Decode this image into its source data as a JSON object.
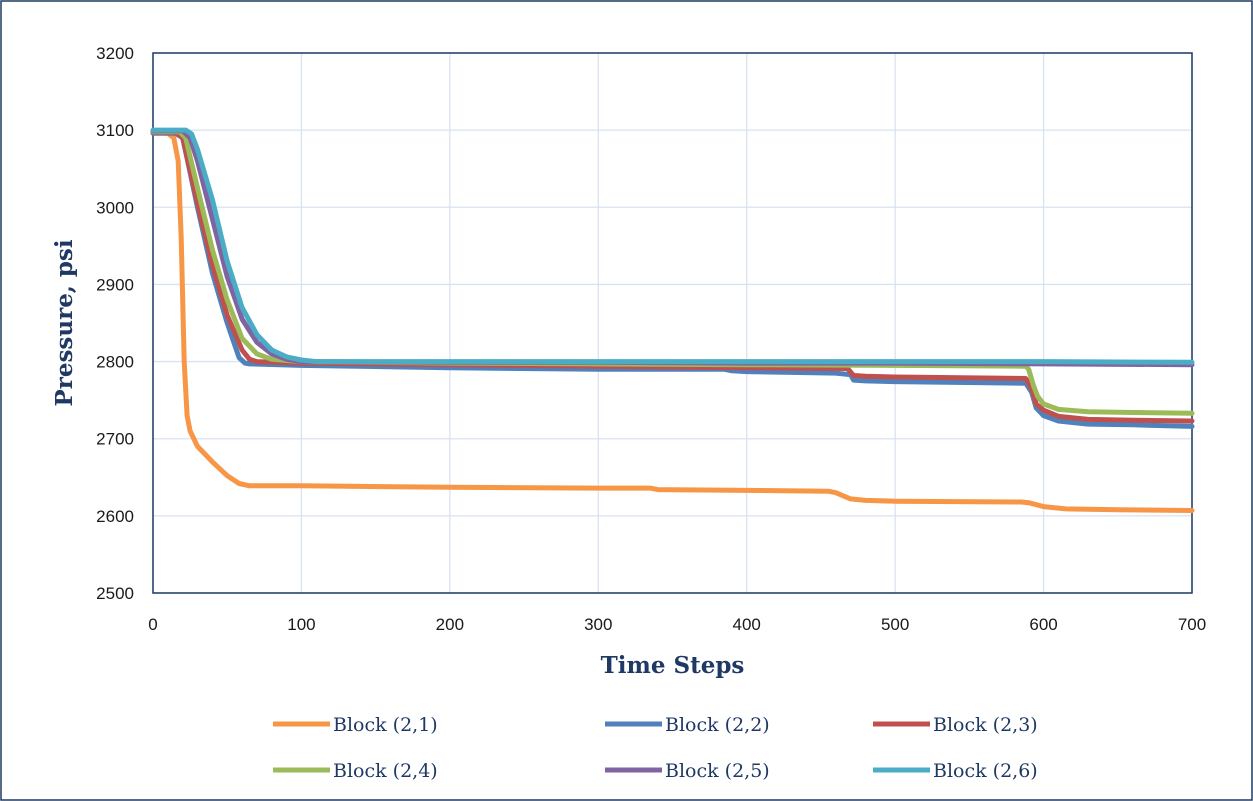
{
  "chart_data": {
    "type": "line",
    "title": "",
    "xlabel": "Time Steps",
    "ylabel": "Pressure, psi",
    "xlim": [
      0,
      700
    ],
    "ylim": [
      2500,
      3200
    ],
    "xticks": [
      0,
      100,
      200,
      300,
      400,
      500,
      600,
      700
    ],
    "yticks": [
      2500,
      2600,
      2700,
      2800,
      2900,
      3000,
      3100,
      3200
    ],
    "grid": true,
    "legend_position": "bottom",
    "series": [
      {
        "name": "Block (2,1)",
        "color": "#f79646",
        "x": [
          0,
          10,
          14,
          17,
          19,
          21,
          23,
          25,
          30,
          40,
          50,
          58,
          65,
          100,
          200,
          300,
          335,
          340,
          400,
          455,
          460,
          470,
          480,
          500,
          585,
          590,
          600,
          615,
          650,
          700
        ],
        "y": [
          3097,
          3096,
          3090,
          3060,
          2960,
          2800,
          2730,
          2710,
          2690,
          2670,
          2652,
          2642,
          2639,
          2639,
          2637,
          2636,
          2636,
          2634,
          2633,
          2632,
          2630,
          2622,
          2620,
          2619,
          2618,
          2617,
          2612,
          2609,
          2608,
          2607
        ]
      },
      {
        "name": "Block (2,2)",
        "color": "#4f81bd",
        "x": [
          0,
          15,
          20,
          30,
          40,
          50,
          58,
          62,
          65,
          100,
          200,
          300,
          385,
          390,
          400,
          460,
          470,
          472,
          480,
          500,
          588,
          592,
          595,
          600,
          610,
          630,
          660,
          700
        ],
        "y": [
          3096,
          3096,
          3090,
          3000,
          2915,
          2850,
          2805,
          2798,
          2797,
          2795,
          2792,
          2790,
          2790,
          2788,
          2787,
          2785,
          2783,
          2776,
          2775,
          2774,
          2772,
          2760,
          2740,
          2730,
          2723,
          2719,
          2718,
          2716
        ]
      },
      {
        "name": "Block (2,3)",
        "color": "#c0504d",
        "x": [
          0,
          15,
          20,
          30,
          40,
          50,
          60,
          65,
          70,
          100,
          200,
          300,
          400,
          468,
          472,
          480,
          500,
          588,
          592,
          595,
          600,
          610,
          630,
          660,
          700
        ],
        "y": [
          3097,
          3097,
          3090,
          3005,
          2925,
          2860,
          2815,
          2803,
          2800,
          2798,
          2796,
          2794,
          2792,
          2791,
          2782,
          2781,
          2780,
          2778,
          2765,
          2745,
          2737,
          2729,
          2725,
          2724,
          2723
        ]
      },
      {
        "name": "Block (2,4)",
        "color": "#9bbb59",
        "x": [
          0,
          18,
          22,
          30,
          40,
          50,
          60,
          70,
          80,
          100,
          200,
          300,
          400,
          500,
          588,
          590,
          593,
          596,
          600,
          610,
          630,
          660,
          700
        ],
        "y": [
          3098,
          3098,
          3090,
          3025,
          2945,
          2880,
          2830,
          2810,
          2803,
          2800,
          2798,
          2797,
          2796,
          2795,
          2794,
          2790,
          2770,
          2755,
          2745,
          2738,
          2735,
          2734,
          2733
        ]
      },
      {
        "name": "Block (2,5)",
        "color": "#8064a2",
        "x": [
          0,
          20,
          25,
          30,
          40,
          50,
          60,
          70,
          80,
          90,
          100,
          200,
          300,
          400,
          500,
          600,
          700
        ],
        "y": [
          3099,
          3099,
          3090,
          3060,
          2985,
          2910,
          2855,
          2825,
          2810,
          2803,
          2800,
          2799,
          2799,
          2798,
          2798,
          2797,
          2796
        ]
      },
      {
        "name": "Block (2,6)",
        "color": "#4bacc6",
        "x": [
          0,
          22,
          26,
          30,
          40,
          50,
          60,
          70,
          80,
          90,
          100,
          110,
          200,
          300,
          400,
          500,
          600,
          700
        ],
        "y": [
          3100,
          3100,
          3095,
          3075,
          3010,
          2930,
          2870,
          2835,
          2815,
          2806,
          2802,
          2800,
          2800,
          2800,
          2800,
          2800,
          2800,
          2799
        ]
      }
    ]
  }
}
